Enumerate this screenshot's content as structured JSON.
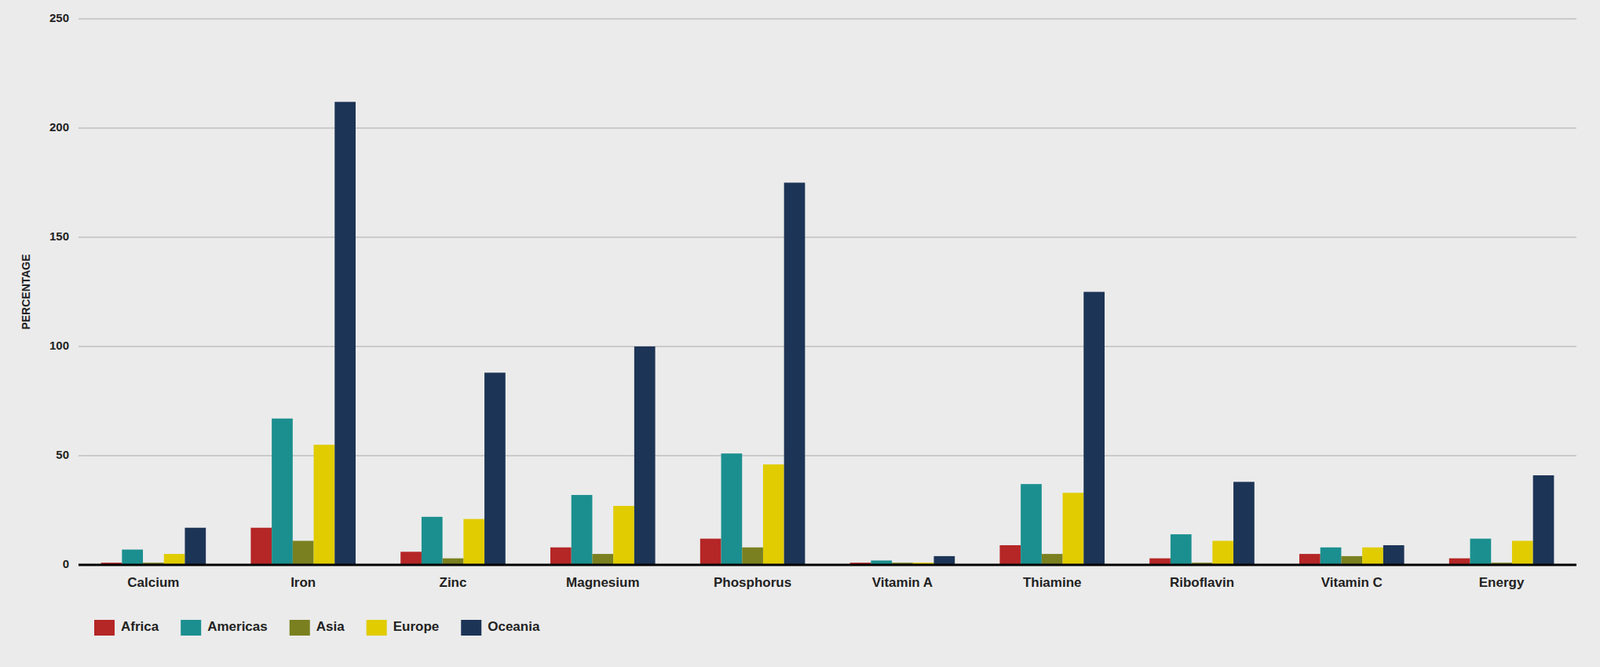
{
  "chart_data": {
    "type": "bar",
    "ylabel": "PERCENTAGE",
    "categories": [
      "Calcium",
      "Iron",
      "Zinc",
      "Magnesium",
      "Phosphorus",
      "Vitamin A",
      "Thiamine",
      "Riboflavin",
      "Vitamin C",
      "Energy"
    ],
    "series": [
      {
        "name": "Africa",
        "color": "#b52626",
        "values": [
          1,
          17,
          6,
          8,
          12,
          1,
          9,
          3,
          5,
          3
        ]
      },
      {
        "name": "Americas",
        "color": "#1b8f8f",
        "values": [
          7,
          67,
          22,
          32,
          51,
          2,
          37,
          14,
          8,
          12
        ]
      },
      {
        "name": "Asia",
        "color": "#7a8020",
        "values": [
          1,
          11,
          3,
          5,
          8,
          1,
          5,
          1,
          4,
          1
        ]
      },
      {
        "name": "Europe",
        "color": "#e0cc00",
        "values": [
          5,
          55,
          21,
          27,
          46,
          1,
          33,
          11,
          8,
          11
        ]
      },
      {
        "name": "Oceania",
        "color": "#1c3456",
        "values": [
          17,
          212,
          88,
          100,
          175,
          4,
          125,
          38,
          9,
          41
        ]
      }
    ],
    "ylim": [
      0,
      250
    ],
    "yticks": [
      0,
      50,
      100,
      150,
      200,
      250
    ],
    "grid": true,
    "legend": "lower left"
  }
}
